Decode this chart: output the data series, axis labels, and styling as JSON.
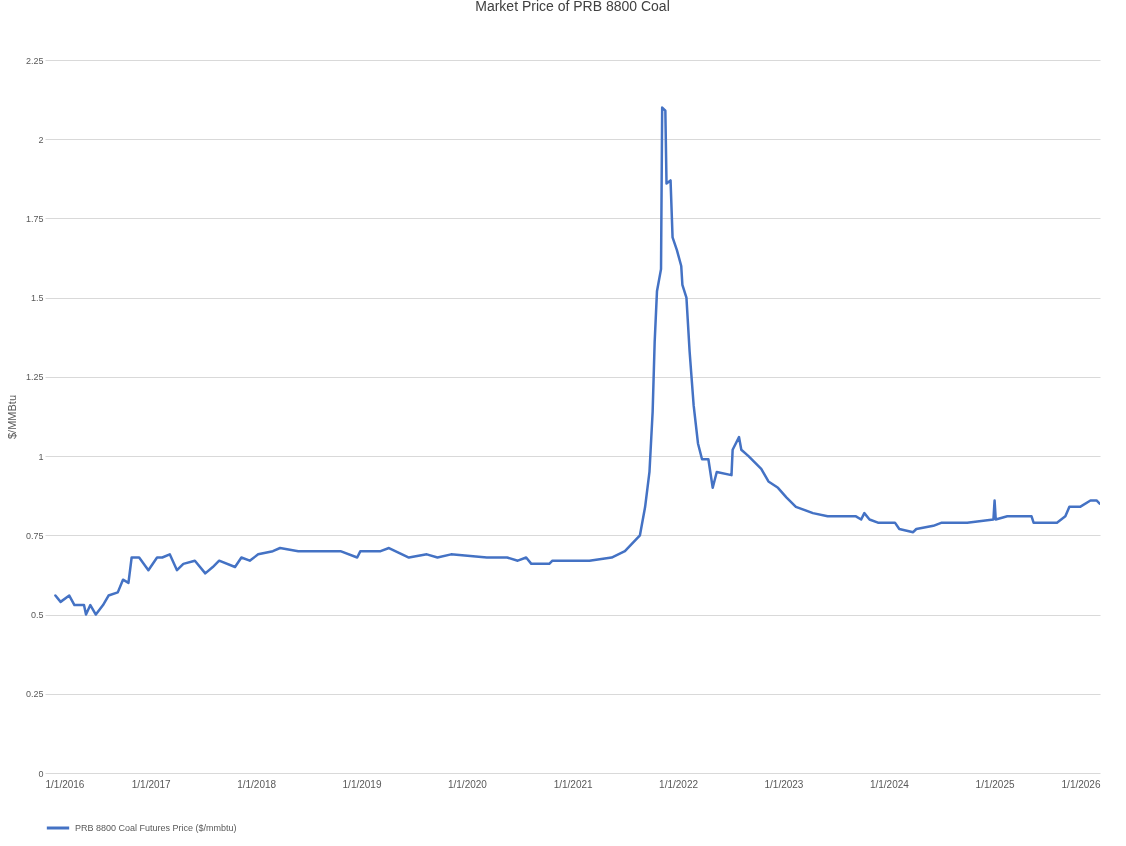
{
  "chart_data": {
    "type": "line",
    "title": "Market Price of PRB 8800 Coal",
    "ylabel": "$/MMBtu",
    "x": [
      "2016-02-06",
      "2016-02-24",
      "2016-03-25",
      "2016-04-12",
      "2016-05-15",
      "2016-05-22",
      "2016-06-06",
      "2016-06-25",
      "2016-07-20",
      "2016-08-08",
      "2016-09-09",
      "2016-09-27",
      "2016-10-16",
      "2016-10-27",
      "2016-11-22",
      "2016-12-24",
      "2017-01-23",
      "2017-02-10",
      "2017-03-08",
      "2017-04-02",
      "2017-04-24",
      "2017-06-03",
      "2017-07-09",
      "2017-08-04",
      "2017-08-26",
      "2017-10-20",
      "2017-11-11",
      "2017-12-10",
      "2018-01-08",
      "2018-02-28",
      "2018-03-25",
      "2018-05-27",
      "2018-07-24",
      "2018-10-20",
      "2018-12-17",
      "2018-12-28",
      "2019-03-08",
      "2019-04-06",
      "2019-06-14",
      "2019-08-15",
      "2019-09-21",
      "2019-11-07",
      "2020-03-10",
      "2020-05-19",
      "2020-06-25",
      "2020-07-24",
      "2020-08-11",
      "2020-10-12",
      "2020-10-23",
      "2021-02-28",
      "2021-05-16",
      "2021-07-01",
      "2021-08-22",
      "2021-09-09",
      "2021-09-24",
      "2021-10-05",
      "2021-10-12",
      "2021-10-20",
      "2021-11-03",
      "2021-11-07",
      "2021-11-18",
      "2021-11-22",
      "2021-12-06",
      "2021-12-13",
      "2021-12-28",
      "2022-01-12",
      "2022-01-16",
      "2022-01-30",
      "2022-02-10",
      "2022-02-24",
      "2022-03-11",
      "2022-03-25",
      "2022-04-16",
      "2022-05-01",
      "2022-05-15",
      "2022-07-05",
      "2022-07-09",
      "2022-07-31",
      "2022-08-08",
      "2022-09-02",
      "2022-10-16",
      "2022-11-10",
      "2022-12-13",
      "2023-01-11",
      "2023-02-13",
      "2023-04-13",
      "2023-06-03",
      "2023-09-09",
      "2023-09-27",
      "2023-10-08",
      "2023-10-26",
      "2023-11-24",
      "2024-01-22",
      "2024-02-06",
      "2024-03-25",
      "2024-04-05",
      "2024-06-03",
      "2024-07-02",
      "2024-09-28",
      "2024-12-28",
      "2025-01-01",
      "2025-01-05",
      "2025-02-14",
      "2025-05-09",
      "2025-05-16",
      "2025-08-05",
      "2025-09-03",
      "2025-09-17",
      "2025-10-24",
      "2025-11-29",
      "2025-12-20",
      "2025-12-31"
    ],
    "series": [
      {
        "name": "PRB 8800 Coal Futures Price ($/mmbtu)",
        "color": "#4472c4",
        "values": [
          0.56,
          0.54,
          0.56,
          0.53,
          0.53,
          0.5,
          0.53,
          0.5,
          0.53,
          0.56,
          0.57,
          0.61,
          0.6,
          0.68,
          0.68,
          0.64,
          0.68,
          0.68,
          0.69,
          0.64,
          0.66,
          0.67,
          0.63,
          0.65,
          0.67,
          0.65,
          0.68,
          0.67,
          0.69,
          0.7,
          0.71,
          0.7,
          0.7,
          0.7,
          0.68,
          0.7,
          0.7,
          0.71,
          0.68,
          0.69,
          0.68,
          0.69,
          0.68,
          0.68,
          0.67,
          0.68,
          0.66,
          0.66,
          0.67,
          0.67,
          0.68,
          0.7,
          0.75,
          0.84,
          0.95,
          1.14,
          1.36,
          1.52,
          1.59,
          2.1,
          2.09,
          1.86,
          1.87,
          1.69,
          1.65,
          1.6,
          1.54,
          1.5,
          1.33,
          1.16,
          1.04,
          0.99,
          0.99,
          0.9,
          0.95,
          0.94,
          1.02,
          1.06,
          1.02,
          1.0,
          0.96,
          0.92,
          0.9,
          0.87,
          0.84,
          0.82,
          0.81,
          0.81,
          0.8,
          0.82,
          0.8,
          0.79,
          0.79,
          0.77,
          0.76,
          0.77,
          0.78,
          0.79,
          0.79,
          0.8,
          0.86,
          0.8,
          0.81,
          0.81,
          0.79,
          0.79,
          0.81,
          0.84,
          0.84,
          0.86,
          0.86,
          0.85
        ]
      }
    ],
    "xlim": [
      "2016-01-01",
      "2026-01-01"
    ],
    "xticks": [
      {
        "value": "2016-01-01",
        "label": "1/1/2016"
      },
      {
        "value": "2017-01-01",
        "label": "1/1/2017"
      },
      {
        "value": "2018-01-01",
        "label": "1/1/2018"
      },
      {
        "value": "2019-01-01",
        "label": "1/1/2019"
      },
      {
        "value": "2020-01-01",
        "label": "1/1/2020"
      },
      {
        "value": "2021-01-01",
        "label": "1/1/2021"
      },
      {
        "value": "2022-01-01",
        "label": "1/1/2022"
      },
      {
        "value": "2023-01-01",
        "label": "1/1/2023"
      },
      {
        "value": "2024-01-01",
        "label": "1/1/2024"
      },
      {
        "value": "2025-01-01",
        "label": "1/1/2025"
      },
      {
        "value": "2026-01-01",
        "label": "1/1/2026"
      }
    ],
    "ylim": [
      0,
      2.25
    ],
    "yticks": [
      0,
      0.25,
      0.5,
      0.75,
      1,
      1.25,
      1.5,
      1.75,
      2,
      2.25
    ],
    "grid": "y",
    "legend": "bottom",
    "line_style": "solid",
    "marker": "none"
  }
}
